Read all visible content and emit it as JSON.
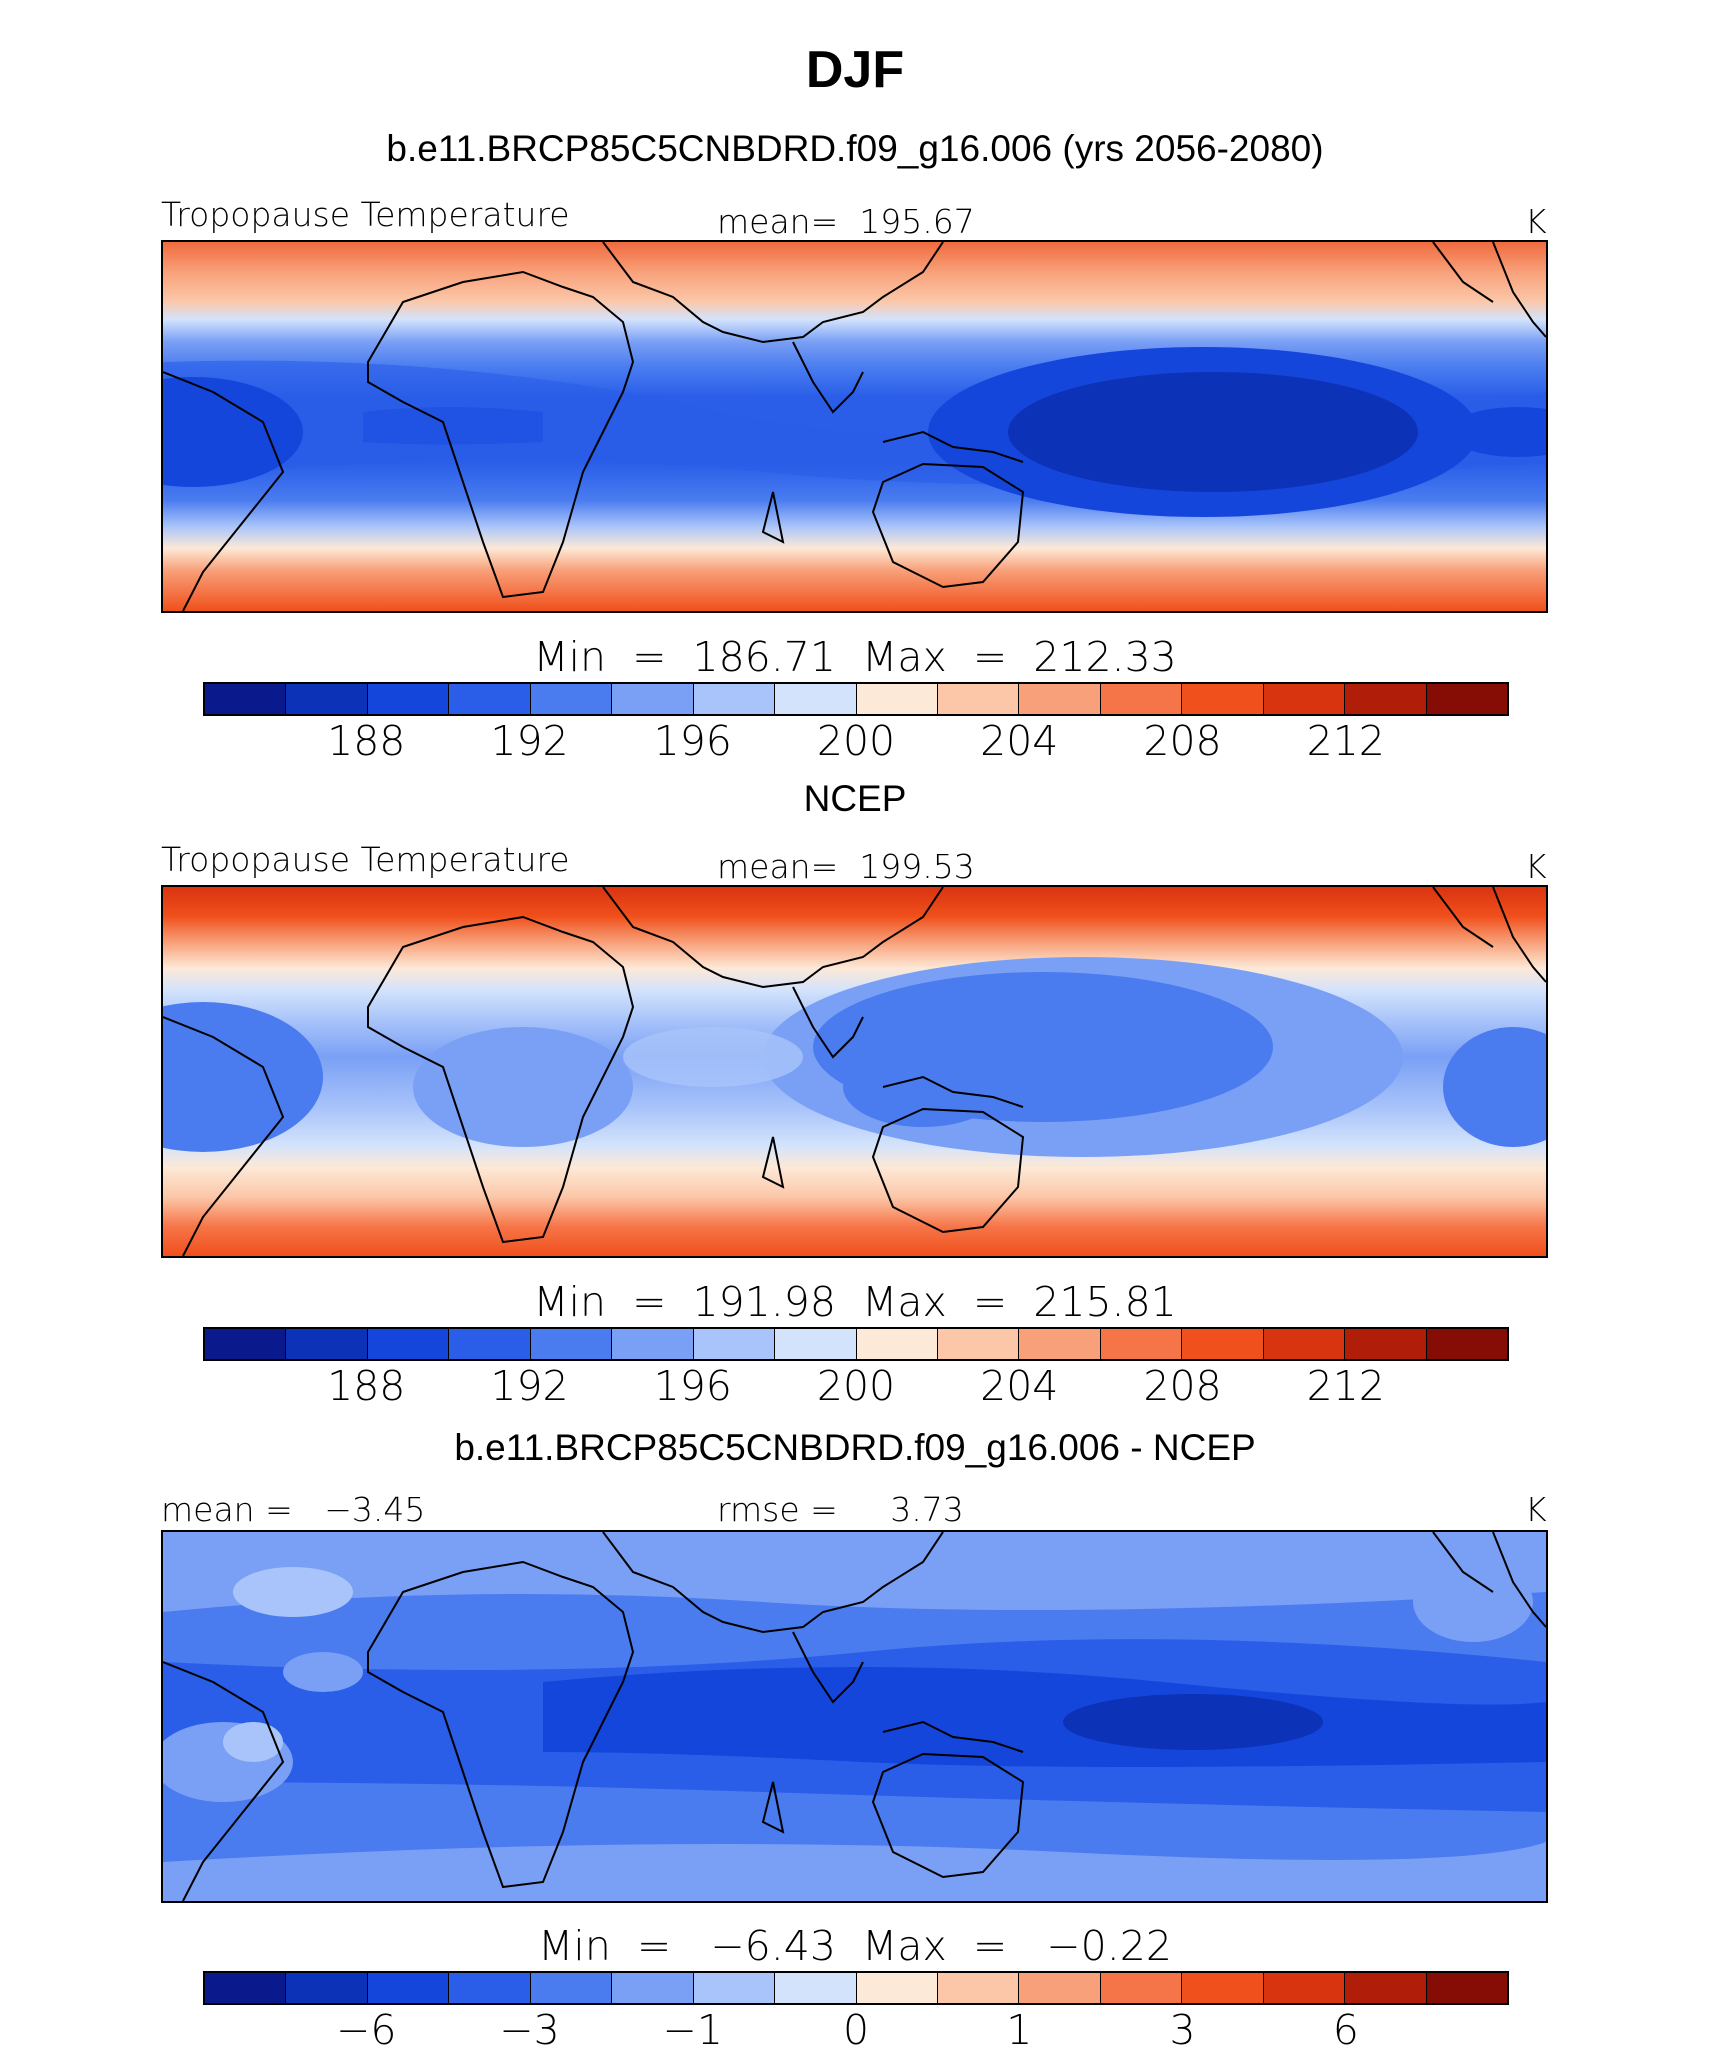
{
  "title": "DJF",
  "panels": [
    {
      "heading": "b.e11.BRCP85C5CNBDRD.f09_g16.006 (yrs 2056-2080)",
      "left_label": "Tropopause Temperature",
      "center_label": "mean=  195.67",
      "units": "K",
      "minmax": "Min  =  186.71  Max  =  212.33",
      "colorbar_labels": [
        "188",
        "192",
        "196",
        "200",
        "204",
        "208",
        "212"
      ]
    },
    {
      "heading": "NCEP",
      "left_label": "Tropopause Temperature",
      "center_label": "mean=  199.53",
      "units": "K",
      "minmax": "Min  =  191.98  Max  =  215.81",
      "colorbar_labels": [
        "188",
        "192",
        "196",
        "200",
        "204",
        "208",
        "212"
      ]
    },
    {
      "heading": "b.e11.BRCP85C5CNBDRD.f09_g16.006 - NCEP",
      "left_label": "mean =   −3.45",
      "center_label": "rmse =     3.73",
      "units": "K",
      "minmax": "Min  =   −6.43  Max  =   −0.22",
      "colorbar_labels": [
        "−6",
        "−3",
        "−1",
        "0",
        "1",
        "3",
        "6"
      ]
    }
  ],
  "colorbar_colors": [
    "#0a1a8c",
    "#0c32b8",
    "#1446dc",
    "#2a5ee8",
    "#4a7cf0",
    "#7aa0f5",
    "#a9c4fa",
    "#d3e3fc",
    "#fde9d7",
    "#fbc7a8",
    "#f8a079",
    "#f67548",
    "#f0501c",
    "#d93410",
    "#b01e0a",
    "#850d05"
  ]
}
